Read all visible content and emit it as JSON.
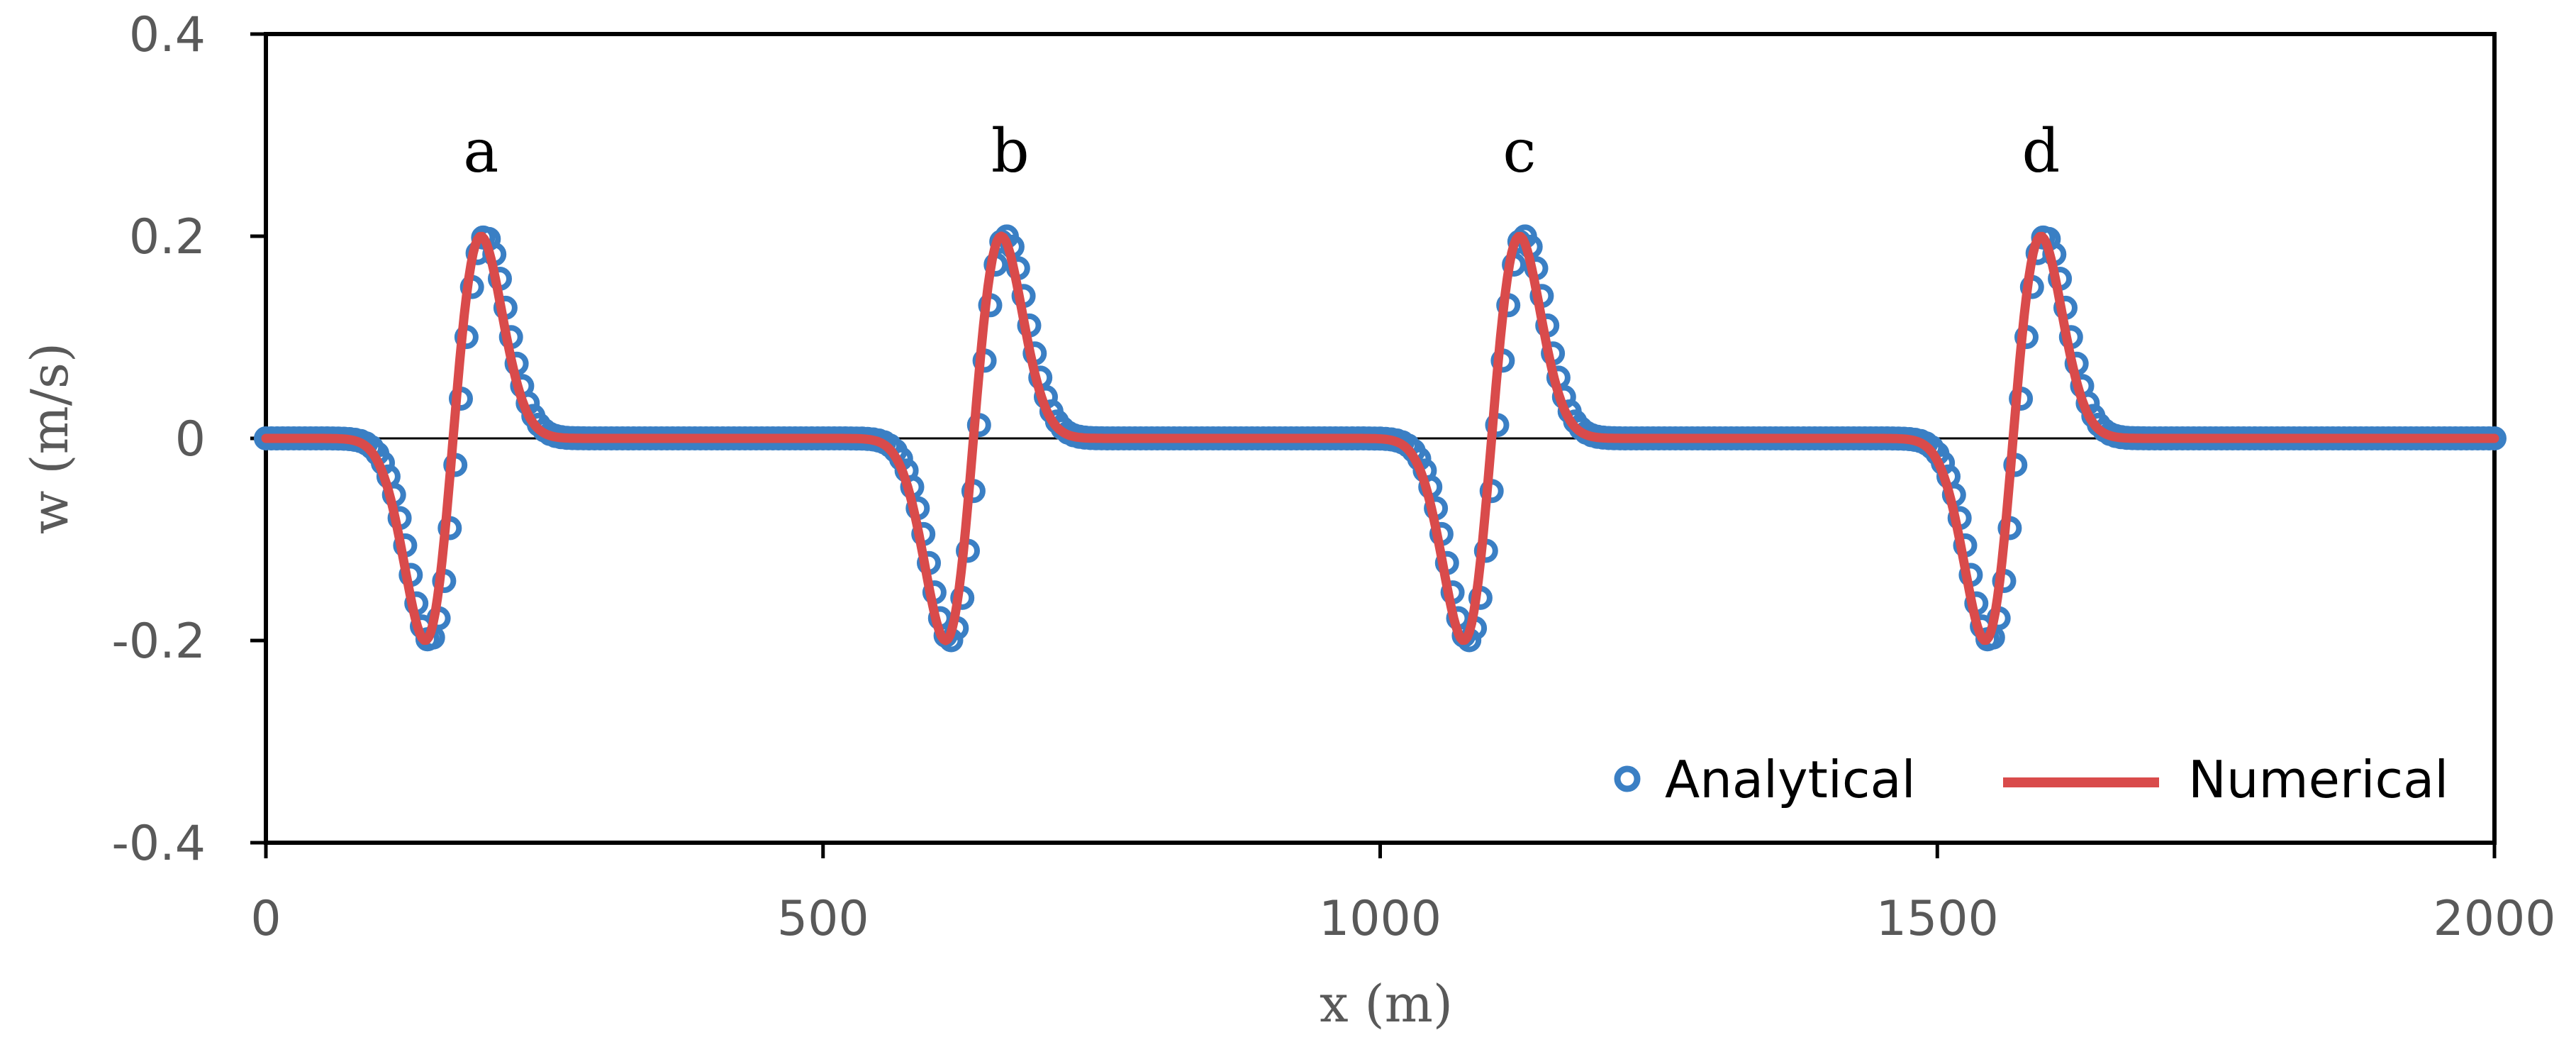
{
  "chart_data": {
    "type": "line",
    "title": "",
    "xlabel": "x (m)",
    "ylabel": "w (m/s)",
    "xlim": [
      0,
      2000
    ],
    "ylim": [
      -0.4,
      0.4
    ],
    "xticks": [
      0,
      500,
      1000,
      1500,
      2000
    ],
    "yticks": [
      -0.4,
      -0.2,
      0,
      0.2,
      0.4
    ],
    "xtick_labels": [
      "0",
      "500",
      "1000",
      "1500",
      "2000"
    ],
    "ytick_labels": [
      "-0.4",
      "-0.2",
      "0",
      "0.2",
      "0.4"
    ],
    "grid": false,
    "legend_position": "bottom-right",
    "peaks": [
      {
        "label": "a",
        "center": 168,
        "label_x": 193
      },
      {
        "label": "b",
        "center": 635,
        "label_x": 668
      },
      {
        "label": "c",
        "center": 1100,
        "label_x": 1125
      },
      {
        "label": "d",
        "center": 1568,
        "label_x": 1593
      }
    ],
    "waveform": {
      "amplitude": 0.2,
      "min_offset": -25,
      "max_offset": 25
    },
    "series": [
      {
        "name": "Analytical",
        "style": "markers",
        "color": "#3a7fc4",
        "x_step": 5,
        "x_range": [
          0,
          2000
        ]
      },
      {
        "name": "Numerical",
        "style": "line",
        "color": "#d94b4b",
        "x_step": 2,
        "x_range": [
          0,
          2000
        ]
      }
    ]
  },
  "legend": {
    "items": [
      {
        "label": "Analytical",
        "color": "#3a7fc4"
      },
      {
        "label": "Numerical",
        "color": "#d94b4b"
      }
    ]
  },
  "colors": {
    "axis": "#000000",
    "analytical": "#3a7fc4",
    "numerical": "#d94b4b",
    "text": "#595959"
  }
}
